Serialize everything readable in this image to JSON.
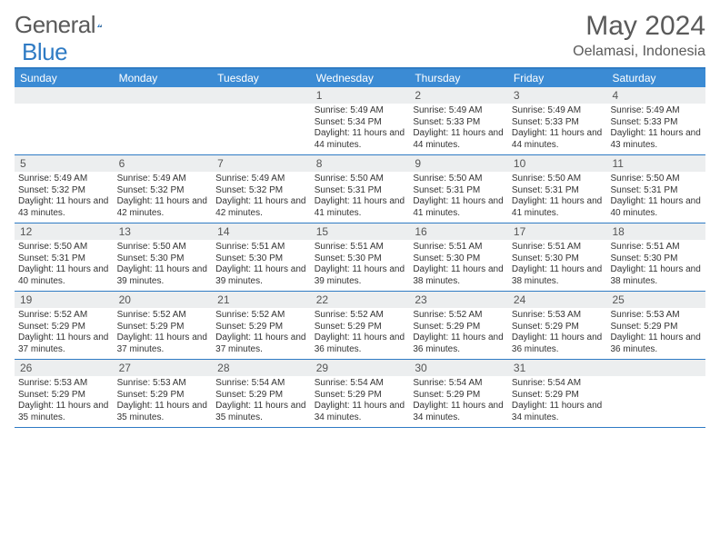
{
  "brand": {
    "name_a": "General",
    "name_b": "Blue"
  },
  "title": "May 2024",
  "location": "Oelamasi, Indonesia",
  "dow": [
    "Sunday",
    "Monday",
    "Tuesday",
    "Wednesday",
    "Thursday",
    "Friday",
    "Saturday"
  ],
  "colors": {
    "header_bar": "#3b8bd4",
    "rule": "#2f7bc4",
    "daynum_bg": "#eceeef",
    "text": "#333333",
    "muted": "#5a5a5a",
    "bg": "#ffffff"
  },
  "typography": {
    "month_title_pt": 30,
    "location_pt": 16,
    "dow_pt": 12,
    "daynum_pt": 12,
    "body_pt": 10
  },
  "weeks": [
    [
      {
        "n": "",
        "lines": []
      },
      {
        "n": "",
        "lines": []
      },
      {
        "n": "",
        "lines": []
      },
      {
        "n": "1",
        "lines": [
          "Sunrise: 5:49 AM",
          "Sunset: 5:34 PM",
          "Daylight: 11 hours and 44 minutes."
        ]
      },
      {
        "n": "2",
        "lines": [
          "Sunrise: 5:49 AM",
          "Sunset: 5:33 PM",
          "Daylight: 11 hours and 44 minutes."
        ]
      },
      {
        "n": "3",
        "lines": [
          "Sunrise: 5:49 AM",
          "Sunset: 5:33 PM",
          "Daylight: 11 hours and 44 minutes."
        ]
      },
      {
        "n": "4",
        "lines": [
          "Sunrise: 5:49 AM",
          "Sunset: 5:33 PM",
          "Daylight: 11 hours and 43 minutes."
        ]
      }
    ],
    [
      {
        "n": "5",
        "lines": [
          "Sunrise: 5:49 AM",
          "Sunset: 5:32 PM",
          "Daylight: 11 hours and 43 minutes."
        ]
      },
      {
        "n": "6",
        "lines": [
          "Sunrise: 5:49 AM",
          "Sunset: 5:32 PM",
          "Daylight: 11 hours and 42 minutes."
        ]
      },
      {
        "n": "7",
        "lines": [
          "Sunrise: 5:49 AM",
          "Sunset: 5:32 PM",
          "Daylight: 11 hours and 42 minutes."
        ]
      },
      {
        "n": "8",
        "lines": [
          "Sunrise: 5:50 AM",
          "Sunset: 5:31 PM",
          "Daylight: 11 hours and 41 minutes."
        ]
      },
      {
        "n": "9",
        "lines": [
          "Sunrise: 5:50 AM",
          "Sunset: 5:31 PM",
          "Daylight: 11 hours and 41 minutes."
        ]
      },
      {
        "n": "10",
        "lines": [
          "Sunrise: 5:50 AM",
          "Sunset: 5:31 PM",
          "Daylight: 11 hours and 41 minutes."
        ]
      },
      {
        "n": "11",
        "lines": [
          "Sunrise: 5:50 AM",
          "Sunset: 5:31 PM",
          "Daylight: 11 hours and 40 minutes."
        ]
      }
    ],
    [
      {
        "n": "12",
        "lines": [
          "Sunrise: 5:50 AM",
          "Sunset: 5:31 PM",
          "Daylight: 11 hours and 40 minutes."
        ]
      },
      {
        "n": "13",
        "lines": [
          "Sunrise: 5:50 AM",
          "Sunset: 5:30 PM",
          "Daylight: 11 hours and 39 minutes."
        ]
      },
      {
        "n": "14",
        "lines": [
          "Sunrise: 5:51 AM",
          "Sunset: 5:30 PM",
          "Daylight: 11 hours and 39 minutes."
        ]
      },
      {
        "n": "15",
        "lines": [
          "Sunrise: 5:51 AM",
          "Sunset: 5:30 PM",
          "Daylight: 11 hours and 39 minutes."
        ]
      },
      {
        "n": "16",
        "lines": [
          "Sunrise: 5:51 AM",
          "Sunset: 5:30 PM",
          "Daylight: 11 hours and 38 minutes."
        ]
      },
      {
        "n": "17",
        "lines": [
          "Sunrise: 5:51 AM",
          "Sunset: 5:30 PM",
          "Daylight: 11 hours and 38 minutes."
        ]
      },
      {
        "n": "18",
        "lines": [
          "Sunrise: 5:51 AM",
          "Sunset: 5:30 PM",
          "Daylight: 11 hours and 38 minutes."
        ]
      }
    ],
    [
      {
        "n": "19",
        "lines": [
          "Sunrise: 5:52 AM",
          "Sunset: 5:29 PM",
          "Daylight: 11 hours and 37 minutes."
        ]
      },
      {
        "n": "20",
        "lines": [
          "Sunrise: 5:52 AM",
          "Sunset: 5:29 PM",
          "Daylight: 11 hours and 37 minutes."
        ]
      },
      {
        "n": "21",
        "lines": [
          "Sunrise: 5:52 AM",
          "Sunset: 5:29 PM",
          "Daylight: 11 hours and 37 minutes."
        ]
      },
      {
        "n": "22",
        "lines": [
          "Sunrise: 5:52 AM",
          "Sunset: 5:29 PM",
          "Daylight: 11 hours and 36 minutes."
        ]
      },
      {
        "n": "23",
        "lines": [
          "Sunrise: 5:52 AM",
          "Sunset: 5:29 PM",
          "Daylight: 11 hours and 36 minutes."
        ]
      },
      {
        "n": "24",
        "lines": [
          "Sunrise: 5:53 AM",
          "Sunset: 5:29 PM",
          "Daylight: 11 hours and 36 minutes."
        ]
      },
      {
        "n": "25",
        "lines": [
          "Sunrise: 5:53 AM",
          "Sunset: 5:29 PM",
          "Daylight: 11 hours and 36 minutes."
        ]
      }
    ],
    [
      {
        "n": "26",
        "lines": [
          "Sunrise: 5:53 AM",
          "Sunset: 5:29 PM",
          "Daylight: 11 hours and 35 minutes."
        ]
      },
      {
        "n": "27",
        "lines": [
          "Sunrise: 5:53 AM",
          "Sunset: 5:29 PM",
          "Daylight: 11 hours and 35 minutes."
        ]
      },
      {
        "n": "28",
        "lines": [
          "Sunrise: 5:54 AM",
          "Sunset: 5:29 PM",
          "Daylight: 11 hours and 35 minutes."
        ]
      },
      {
        "n": "29",
        "lines": [
          "Sunrise: 5:54 AM",
          "Sunset: 5:29 PM",
          "Daylight: 11 hours and 34 minutes."
        ]
      },
      {
        "n": "30",
        "lines": [
          "Sunrise: 5:54 AM",
          "Sunset: 5:29 PM",
          "Daylight: 11 hours and 34 minutes."
        ]
      },
      {
        "n": "31",
        "lines": [
          "Sunrise: 5:54 AM",
          "Sunset: 5:29 PM",
          "Daylight: 11 hours and 34 minutes."
        ]
      },
      {
        "n": "",
        "lines": []
      }
    ]
  ]
}
